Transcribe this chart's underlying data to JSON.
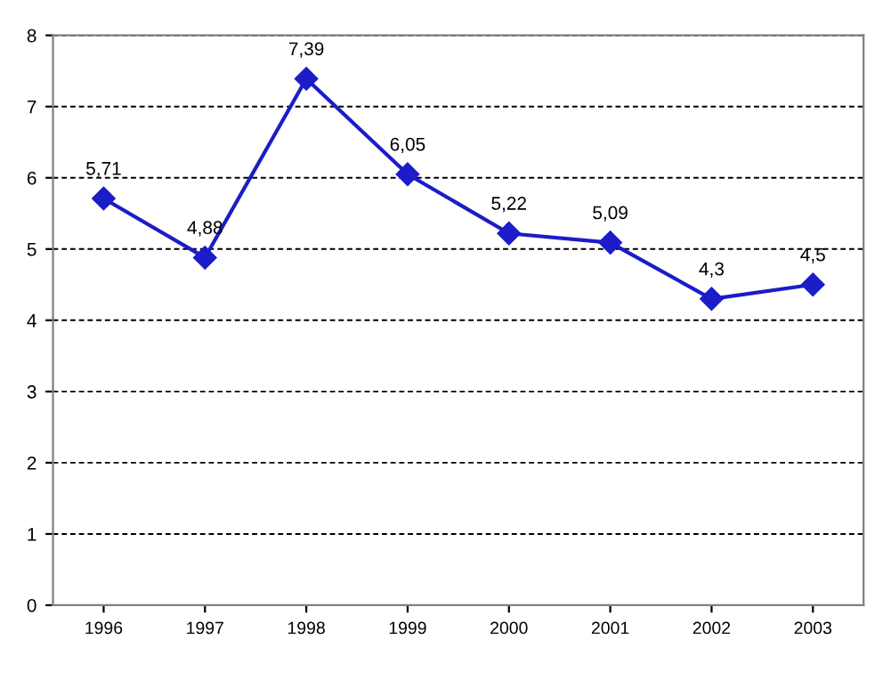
{
  "chart_data": {
    "type": "line",
    "categories": [
      "1996",
      "1997",
      "1998",
      "1999",
      "2000",
      "2001",
      "2002",
      "2003"
    ],
    "series": [
      {
        "color": "#1c1cc8",
        "values": [
          5.71,
          4.88,
          7.39,
          6.05,
          5.22,
          5.09,
          4.3,
          4.5
        ],
        "value_labels": [
          "5,71",
          "4,88",
          "7,39",
          "6,05",
          "5,22",
          "5,09",
          "4,3",
          "4,5"
        ]
      }
    ],
    "ylim": [
      0,
      8
    ],
    "yticks": [
      0,
      1,
      2,
      3,
      4,
      5,
      6,
      7,
      8
    ],
    "grid": "y",
    "marker": "diamond",
    "line_style": "solid"
  }
}
